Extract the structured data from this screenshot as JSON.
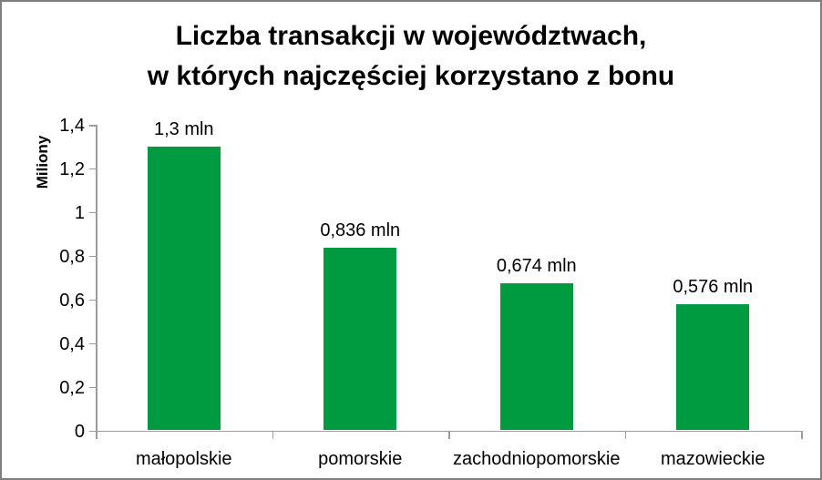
{
  "window": {
    "border_color": "#7f7f7f",
    "background_color": "#ffffff"
  },
  "chart": {
    "title_line1": "Liczba transakcji w województwach,",
    "title_line2": "w których najczęściej korzystano z bonu",
    "ylabel": "Miliony"
  },
  "chart_data": {
    "type": "bar",
    "title": "Liczba transakcji w województwach, w których najczęściej korzystano z bonu",
    "xlabel": "",
    "ylabel": "Miliony",
    "categories": [
      "małopolskie",
      "pomorskie",
      "zachodniopomorskie",
      "mazowieckie"
    ],
    "values": [
      1.3,
      0.836,
      0.674,
      0.576
    ],
    "data_labels": [
      "1,3 mln",
      "0,836 mln",
      "0,674 mln",
      "0,576 mln"
    ],
    "ylim": [
      0,
      1.4
    ],
    "y_ticks": {
      "values": [
        0,
        0.2,
        0.4,
        0.6,
        0.8,
        1,
        1.2,
        1.4
      ],
      "labels": [
        "0",
        "0,2",
        "0,4",
        "0,6",
        "0,8",
        "1",
        "1,2",
        "1,4"
      ]
    },
    "grid": false,
    "legend": false,
    "bar_color": "#009a40",
    "axis_color": "#9c9c9c",
    "text_color": "#000000"
  }
}
